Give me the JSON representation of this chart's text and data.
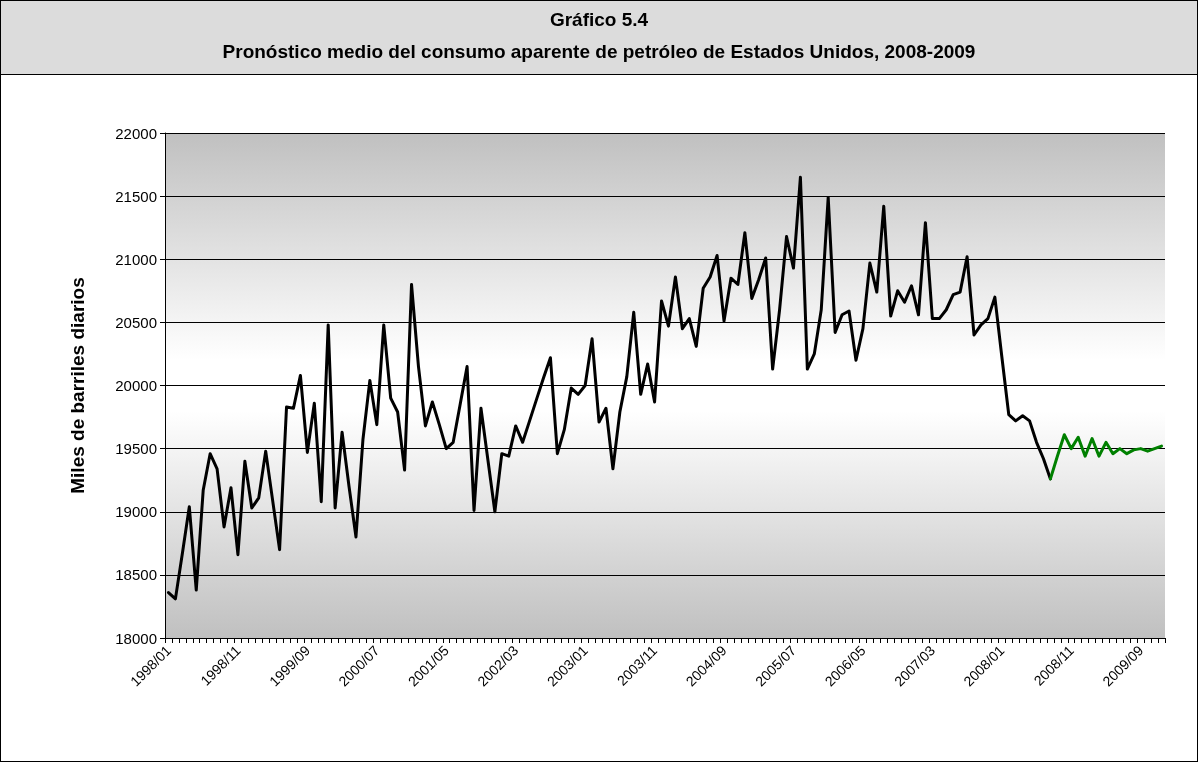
{
  "chart_data": {
    "type": "line",
    "title": "Gráfico 5.4",
    "subtitle": "Pronóstico medio del consumo aparente de petróleo de Estados Unidos, 2008-2009",
    "ylabel": "Miles de barriles diarios",
    "categories": [
      "1998/01",
      null,
      null,
      null,
      null,
      null,
      null,
      null,
      null,
      null,
      "1998/11",
      null,
      null,
      null,
      null,
      null,
      null,
      null,
      null,
      null,
      "1999/09",
      null,
      null,
      null,
      null,
      null,
      null,
      null,
      null,
      null,
      "2000/07",
      null,
      null,
      null,
      null,
      null,
      null,
      null,
      null,
      null,
      "2001/05",
      null,
      null,
      null,
      null,
      null,
      null,
      null,
      null,
      null,
      "2002/03",
      null,
      null,
      null,
      null,
      null,
      null,
      null,
      null,
      null,
      "2003/01",
      null,
      null,
      null,
      null,
      null,
      null,
      null,
      null,
      null,
      "2003/11",
      null,
      null,
      null,
      null,
      null,
      null,
      null,
      null,
      null,
      "2004/09",
      null,
      null,
      null,
      null,
      null,
      null,
      null,
      null,
      null,
      "2005/07",
      null,
      null,
      null,
      null,
      null,
      null,
      null,
      null,
      null,
      "2006/05",
      null,
      null,
      null,
      null,
      null,
      null,
      null,
      null,
      null,
      "2007/03",
      null,
      null,
      null,
      null,
      null,
      null,
      null,
      null,
      null,
      "2008/01",
      null,
      null,
      null,
      null,
      null,
      null,
      null,
      null,
      null,
      "2008/11",
      null,
      null,
      null,
      null,
      null,
      null,
      null,
      null,
      null,
      "2009/09",
      null,
      null,
      null
    ],
    "series": [
      {
        "color": "#000000",
        "values": [
          18360,
          18310,
          18670,
          19040,
          18380,
          19170,
          19460,
          19340,
          18880,
          19190,
          18660,
          19400,
          19030,
          19110,
          19480,
          19090,
          18700,
          19830,
          19820,
          20080,
          19470,
          19860,
          19080,
          20480,
          19030,
          19630,
          19200,
          18800,
          19570,
          20040,
          19690,
          20480,
          19900,
          19790,
          19330,
          20800,
          20150,
          19680,
          19870,
          19690,
          19500,
          19550,
          19850,
          20150,
          19010,
          19820,
          19410,
          19000,
          19460,
          19440,
          19680,
          19550,
          19720,
          19890,
          20060,
          20220,
          19460,
          19650,
          19980,
          19930,
          20000,
          20370,
          19710,
          19820,
          19340,
          19790,
          20070,
          20580,
          19930,
          20170,
          19870,
          20670,
          20470,
          20860,
          20450,
          20530,
          20310,
          20770,
          20860,
          21030,
          20510,
          20850,
          20800,
          21210,
          20690,
          20840,
          21010,
          20130,
          20600,
          21180,
          20930,
          21650,
          20130,
          20250,
          20600,
          21490,
          20420,
          20560,
          20590,
          20200,
          20450,
          20970,
          20740,
          21420,
          20550,
          20750,
          20660,
          20790,
          20560,
          21290,
          20530,
          20530,
          20600,
          20720,
          20740,
          21020,
          20400,
          20480,
          20530,
          20700,
          20230,
          19770,
          19720,
          19760,
          19720,
          19550,
          19420,
          19260,
          null,
          null,
          null,
          null,
          null,
          null,
          null,
          null,
          null,
          null,
          null,
          null,
          null,
          null,
          null,
          null
        ]
      },
      {
        "color": "#008000",
        "values": [
          null,
          null,
          null,
          null,
          null,
          null,
          null,
          null,
          null,
          null,
          null,
          null,
          null,
          null,
          null,
          null,
          null,
          null,
          null,
          null,
          null,
          null,
          null,
          null,
          null,
          null,
          null,
          null,
          null,
          null,
          null,
          null,
          null,
          null,
          null,
          null,
          null,
          null,
          null,
          null,
          null,
          null,
          null,
          null,
          null,
          null,
          null,
          null,
          null,
          null,
          null,
          null,
          null,
          null,
          null,
          null,
          null,
          null,
          null,
          null,
          null,
          null,
          null,
          null,
          null,
          null,
          null,
          null,
          null,
          null,
          null,
          null,
          null,
          null,
          null,
          null,
          null,
          null,
          null,
          null,
          null,
          null,
          null,
          null,
          null,
          null,
          null,
          null,
          null,
          null,
          null,
          null,
          null,
          null,
          null,
          null,
          null,
          null,
          null,
          null,
          null,
          null,
          null,
          null,
          null,
          null,
          null,
          null,
          null,
          null,
          null,
          null,
          null,
          null,
          null,
          null,
          null,
          null,
          null,
          null,
          null,
          null,
          null,
          null,
          null,
          null,
          null,
          19260,
          19440,
          19610,
          19500,
          19590,
          19440,
          19580,
          19440,
          19550,
          19460,
          19500,
          19460,
          19490,
          19500,
          19480,
          19500,
          19520
        ]
      }
    ],
    "ylim": [
      18000,
      22000
    ],
    "yticks": [
      18000,
      18500,
      19000,
      19500,
      20000,
      20500,
      21000,
      21500,
      22000
    ],
    "grid": "y",
    "marker": "none",
    "line_style": "solid"
  }
}
